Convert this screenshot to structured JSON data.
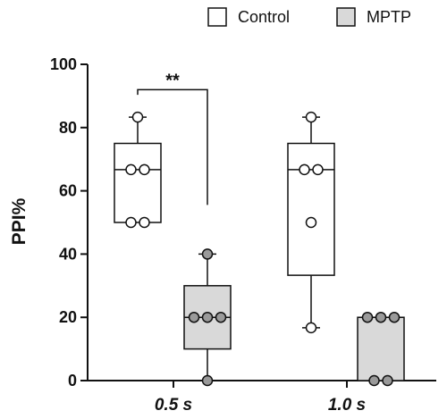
{
  "chart_data": {
    "type": "box",
    "ylabel": "PPI%",
    "ylim": [
      0,
      100
    ],
    "yticks": [
      0,
      20,
      40,
      60,
      80,
      100
    ],
    "categories": [
      "0.5 s",
      "1.0 s"
    ],
    "series": [
      {
        "name": "Control",
        "color": "#ffffff",
        "boxes": [
          {
            "category": "0.5 s",
            "min": 50,
            "q1": 50,
            "median": 66.7,
            "q3": 75,
            "max": 83.3,
            "points": [
              83.3,
              66.7,
              66.7,
              50,
              50
            ]
          },
          {
            "category": "1.0 s",
            "min": 16.7,
            "q1": 33.3,
            "median": 66.7,
            "q3": 75,
            "max": 83.3,
            "points": [
              83.3,
              66.7,
              66.7,
              50,
              16.7
            ]
          }
        ]
      },
      {
        "name": "MPTP",
        "color": "#d9d9d9",
        "boxes": [
          {
            "category": "0.5 s",
            "min": 0,
            "q1": 10,
            "median": 20,
            "q3": 30,
            "max": 40,
            "points": [
              40,
              20,
              20,
              20,
              0
            ]
          },
          {
            "category": "1.0 s",
            "min": 0,
            "q1": 0,
            "median": 20,
            "q3": 20,
            "max": 20,
            "points": [
              20,
              20,
              20,
              0,
              0
            ]
          }
        ]
      }
    ],
    "legend": {
      "position": "top-right",
      "entries": [
        "Control",
        "MPTP"
      ]
    },
    "annotations": [
      {
        "text": "**",
        "category": "0.5 s",
        "between": [
          "Control",
          "MPTP"
        ],
        "bracket_y": 92
      }
    ]
  }
}
